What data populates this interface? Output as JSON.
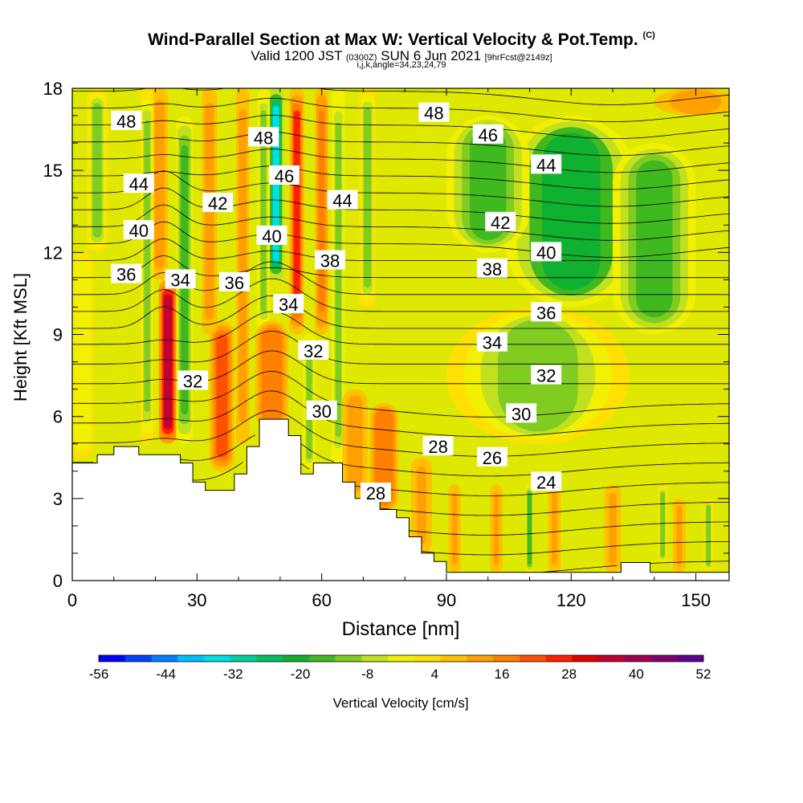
{
  "title": {
    "main": "Wind-Parallel Section at Max W: Vertical Velocity & Pot.Temp.",
    "copyright": "(C)",
    "valid_prefix": "Valid 1200 JST",
    "valid_utc": "(0300Z)",
    "valid_date": "SUN 6 Jun 2021",
    "forecast": "[9hrFcst@2149z]",
    "indices": "i,j,k,angle=34,23,24,79"
  },
  "chart_data": {
    "type": "heatmap",
    "xlabel": "Distance [nm]",
    "ylabel": "Height [Kft MSL]",
    "xlim": [
      0,
      158
    ],
    "ylim": [
      0,
      18
    ],
    "x_ticks": [
      0,
      30,
      60,
      90,
      120,
      150
    ],
    "y_ticks": [
      0,
      3,
      6,
      9,
      12,
      15,
      18
    ],
    "grid": false,
    "colorbar": {
      "label": "Vertical Velocity [cm/s]",
      "tick_labels": [
        -56,
        -44,
        -32,
        -20,
        -8,
        4,
        16,
        28,
        40,
        52
      ],
      "colors": [
        "#0000ff",
        "#0040ff",
        "#0080ff",
        "#00bfff",
        "#00e0e0",
        "#00d0a0",
        "#00c060",
        "#10b030",
        "#40b820",
        "#80cc20",
        "#c0e020",
        "#f0f000",
        "#ffe000",
        "#ffc000",
        "#ffa000",
        "#ff8000",
        "#ff5000",
        "#ff2000",
        "#e00000",
        "#c00030",
        "#a00050",
        "#800070",
        "#600090"
      ]
    },
    "theta_contour_labels": [
      {
        "value": 48,
        "x": 13,
        "y": 16.8
      },
      {
        "value": 48,
        "x": 46,
        "y": 16.2
      },
      {
        "value": 48,
        "x": 87,
        "y": 17.1
      },
      {
        "value": 46,
        "x": 51,
        "y": 14.8
      },
      {
        "value": 46,
        "x": 100,
        "y": 16.3
      },
      {
        "value": 44,
        "x": 16,
        "y": 14.5
      },
      {
        "value": 44,
        "x": 65,
        "y": 13.9
      },
      {
        "value": 44,
        "x": 114,
        "y": 15.2
      },
      {
        "value": 42,
        "x": 35,
        "y": 13.8
      },
      {
        "value": 42,
        "x": 103,
        "y": 13.1
      },
      {
        "value": 40,
        "x": 16,
        "y": 12.8
      },
      {
        "value": 40,
        "x": 48,
        "y": 12.6
      },
      {
        "value": 40,
        "x": 114,
        "y": 12.0
      },
      {
        "value": 38,
        "x": 62,
        "y": 11.7
      },
      {
        "value": 38,
        "x": 101,
        "y": 11.4
      },
      {
        "value": 36,
        "x": 13,
        "y": 11.2
      },
      {
        "value": 36,
        "x": 39,
        "y": 10.9
      },
      {
        "value": 36,
        "x": 114,
        "y": 9.8
      },
      {
        "value": 34,
        "x": 26,
        "y": 11.0
      },
      {
        "value": 34,
        "x": 52,
        "y": 10.1
      },
      {
        "value": 34,
        "x": 101,
        "y": 8.7
      },
      {
        "value": 32,
        "x": 29,
        "y": 7.3
      },
      {
        "value": 32,
        "x": 58,
        "y": 8.4
      },
      {
        "value": 32,
        "x": 114,
        "y": 7.5
      },
      {
        "value": 30,
        "x": 60,
        "y": 6.2
      },
      {
        "value": 30,
        "x": 108,
        "y": 6.1
      },
      {
        "value": 28,
        "x": 88,
        "y": 4.9
      },
      {
        "value": 28,
        "x": 73,
        "y": 3.2
      },
      {
        "value": 26,
        "x": 101,
        "y": 4.5
      },
      {
        "value": 24,
        "x": 114,
        "y": 3.6
      }
    ],
    "terrain": [
      {
        "x": 0,
        "y": 4.3
      },
      {
        "x": 6,
        "y": 4.3
      },
      {
        "x": 6,
        "y": 4.6
      },
      {
        "x": 10,
        "y": 4.6
      },
      {
        "x": 10,
        "y": 4.9
      },
      {
        "x": 16,
        "y": 4.9
      },
      {
        "x": 16,
        "y": 4.6
      },
      {
        "x": 26,
        "y": 4.6
      },
      {
        "x": 26,
        "y": 4.3
      },
      {
        "x": 29,
        "y": 4.3
      },
      {
        "x": 29,
        "y": 3.6
      },
      {
        "x": 32,
        "y": 3.6
      },
      {
        "x": 32,
        "y": 3.3
      },
      {
        "x": 39,
        "y": 3.3
      },
      {
        "x": 39,
        "y": 3.9
      },
      {
        "x": 42,
        "y": 3.9
      },
      {
        "x": 42,
        "y": 4.9
      },
      {
        "x": 45,
        "y": 4.9
      },
      {
        "x": 45,
        "y": 5.9
      },
      {
        "x": 52,
        "y": 5.9
      },
      {
        "x": 52,
        "y": 5.3
      },
      {
        "x": 55,
        "y": 5.3
      },
      {
        "x": 55,
        "y": 3.9
      },
      {
        "x": 58,
        "y": 3.9
      },
      {
        "x": 58,
        "y": 4.3
      },
      {
        "x": 65,
        "y": 4.3
      },
      {
        "x": 65,
        "y": 3.6
      },
      {
        "x": 68,
        "y": 3.6
      },
      {
        "x": 68,
        "y": 3.0
      },
      {
        "x": 74,
        "y": 3.0
      },
      {
        "x": 74,
        "y": 2.6
      },
      {
        "x": 78,
        "y": 2.6
      },
      {
        "x": 78,
        "y": 2.3
      },
      {
        "x": 81,
        "y": 2.3
      },
      {
        "x": 81,
        "y": 1.6
      },
      {
        "x": 84,
        "y": 1.6
      },
      {
        "x": 84,
        "y": 1.0
      },
      {
        "x": 87,
        "y": 1.0
      },
      {
        "x": 87,
        "y": 0.7
      },
      {
        "x": 90,
        "y": 0.7
      },
      {
        "x": 90,
        "y": 0.3
      },
      {
        "x": 132,
        "y": 0.3
      },
      {
        "x": 132,
        "y": 0.66
      },
      {
        "x": 139,
        "y": 0.66
      },
      {
        "x": 139,
        "y": 0.3
      },
      {
        "x": 158,
        "y": 0.3
      }
    ],
    "vertical_velocity_features": [
      {
        "x": 23,
        "ymin": 5.0,
        "ymax": 11.0,
        "w": 34,
        "halfwidth": 2.2
      },
      {
        "x": 21,
        "ymin": 11.0,
        "ymax": 18,
        "w": 12,
        "halfwidth": 2.0
      },
      {
        "x": 27,
        "ymin": 5.0,
        "ymax": 17,
        "w": -14,
        "halfwidth": 2.0
      },
      {
        "x": 18,
        "ymin": 5.0,
        "ymax": 18,
        "w": -10,
        "halfwidth": 1.6
      },
      {
        "x": 36,
        "ymin": 4.0,
        "ymax": 9.5,
        "w": 20,
        "halfwidth": 3.0
      },
      {
        "x": 33,
        "ymin": 9.0,
        "ymax": 18,
        "w": 14,
        "halfwidth": 1.8
      },
      {
        "x": 41,
        "ymin": 5.0,
        "ymax": 18,
        "w": 12,
        "halfwidth": 1.6
      },
      {
        "x": 49,
        "ymin": 11.0,
        "ymax": 18,
        "w": -34,
        "halfwidth": 1.8
      },
      {
        "x": 46,
        "ymin": 9.0,
        "ymax": 18,
        "w": -12,
        "halfwidth": 1.5
      },
      {
        "x": 54,
        "ymin": 9.0,
        "ymax": 18,
        "w": 24,
        "halfwidth": 1.8
      },
      {
        "x": 48,
        "ymin": 5.5,
        "ymax": 9.5,
        "w": 18,
        "halfwidth": 4.0
      },
      {
        "x": 57,
        "ymin": 4.0,
        "ymax": 9.0,
        "w": -12,
        "halfwidth": 1.5
      },
      {
        "x": 60,
        "ymin": 9.0,
        "ymax": 18,
        "w": 16,
        "halfwidth": 1.6
      },
      {
        "x": 64,
        "ymin": 4.0,
        "ymax": 18,
        "w": -12,
        "halfwidth": 1.6
      },
      {
        "x": 68,
        "ymin": 3.0,
        "ymax": 7.0,
        "w": 14,
        "halfwidth": 3.0
      },
      {
        "x": 75,
        "ymin": 2.5,
        "ymax": 6.5,
        "w": 18,
        "halfwidth": 3.5
      },
      {
        "x": 71,
        "ymin": 10.0,
        "ymax": 18,
        "w": -10,
        "halfwidth": 2.0
      },
      {
        "x": 6,
        "ymin": 12.0,
        "ymax": 18,
        "w": -10,
        "halfwidth": 2.5
      },
      {
        "x": 2,
        "ymin": 4.5,
        "ymax": 12,
        "w": -4,
        "halfwidth": 3.0
      },
      {
        "x": 110,
        "ymin": 0.3,
        "ymax": 3.5,
        "w": -14,
        "halfwidth": 1.0
      },
      {
        "x": 102,
        "ymin": 0.3,
        "ymax": 3.5,
        "w": 10,
        "halfwidth": 1.5
      },
      {
        "x": 116,
        "ymin": 0.3,
        "ymax": 3.5,
        "w": 10,
        "halfwidth": 1.5
      },
      {
        "x": 92,
        "ymin": 0.3,
        "ymax": 3.5,
        "w": 10,
        "halfwidth": 1.5
      },
      {
        "x": 84,
        "ymin": 1.0,
        "ymax": 4.5,
        "w": 10,
        "halfwidth": 2.5
      },
      {
        "x": 130,
        "ymin": 0.3,
        "ymax": 3.5,
        "w": 10,
        "halfwidth": 2.0
      },
      {
        "x": 142,
        "ymin": 0.6,
        "ymax": 3.5,
        "w": -10,
        "halfwidth": 1.2
      },
      {
        "x": 153,
        "ymin": 0.3,
        "ymax": 3.0,
        "w": -10,
        "halfwidth": 1.2
      },
      {
        "x": 146,
        "ymin": 0.3,
        "ymax": 3.0,
        "w": 10,
        "halfwidth": 1.5
      },
      {
        "x": 120,
        "ymin": 10,
        "ymax": 17,
        "w": -20,
        "halfwidth": 16
      },
      {
        "x": 100,
        "ymin": 12,
        "ymax": 17,
        "w": -14,
        "halfwidth": 10
      },
      {
        "x": 140,
        "ymin": 9,
        "ymax": 16,
        "w": -14,
        "halfwidth": 10
      },
      {
        "x": 112,
        "ymin": 5,
        "ymax": 10,
        "w": -10,
        "halfwidth": 22
      },
      {
        "x": 150,
        "ymin": 17,
        "ymax": 18,
        "w": 12,
        "halfwidth": 10
      }
    ]
  }
}
